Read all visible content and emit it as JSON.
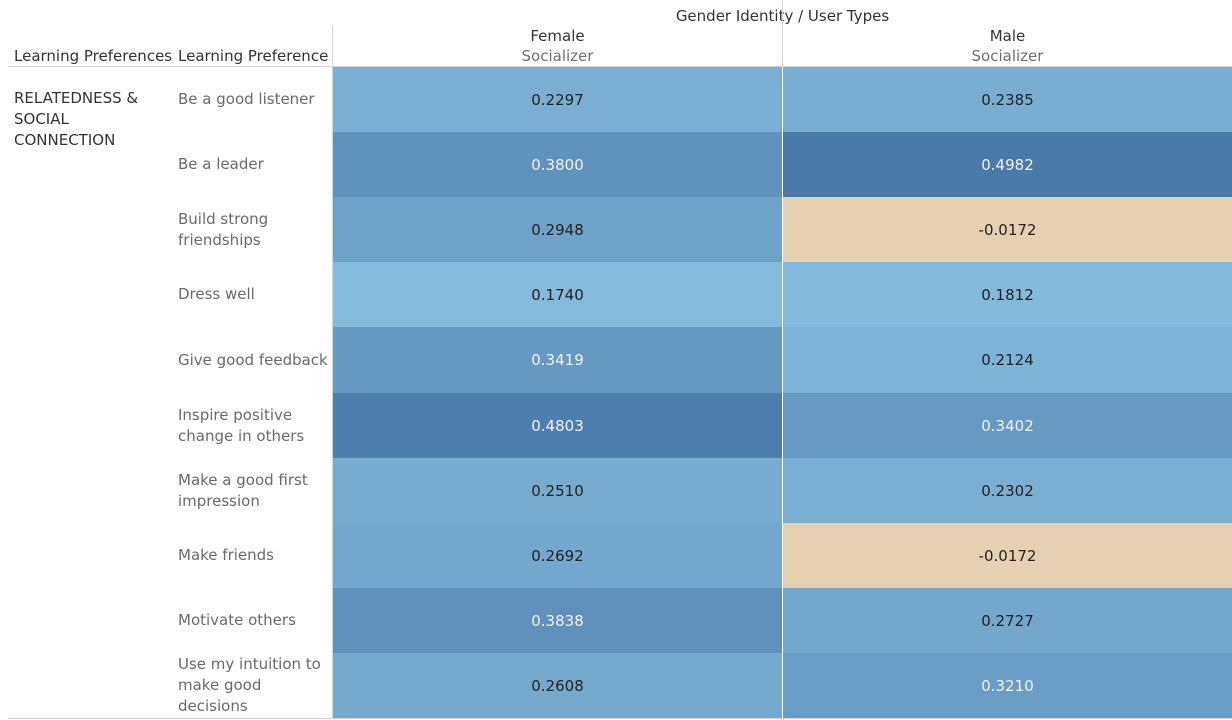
{
  "header": {
    "top_title": "Gender Identity / User Types",
    "row_header_1": "Learning Preferences",
    "row_header_2": "Learning Preference.."
  },
  "columns": [
    {
      "gender": "Female",
      "user_type": "Socializer"
    },
    {
      "gender": "Male",
      "user_type": "Socializer"
    }
  ],
  "group": {
    "label": "RELATEDNESS & SOCIAL CONNECTION"
  },
  "colors": {
    "positive_scale_low": "#85bbdc",
    "positive_scale_high": "#4a7aaa",
    "negative": "#e6d0b2"
  },
  "chart_data": {
    "type": "heatmap",
    "title": "Gender Identity / User Types",
    "xlabel": "Gender Identity / User Types",
    "ylabel": "Learning Preferences",
    "x": [
      "Female / Socializer",
      "Male / Socializer"
    ],
    "y": [
      "Be a good listener",
      "Be a leader",
      "Build strong friendships",
      "Dress well",
      "Give good feedback",
      "Inspire positive change in others",
      "Make a good first impression",
      "Make friends",
      "Motivate others",
      "Use my intuition to make good decisions"
    ],
    "values": [
      [
        "0.2297",
        "0.2385"
      ],
      [
        "0.3800",
        "0.4982"
      ],
      [
        "0.2948",
        "-0.0172"
      ],
      [
        "0.1740",
        "0.1812"
      ],
      [
        "0.3419",
        "0.2124"
      ],
      [
        "0.4803",
        "0.3402"
      ],
      [
        "0.2510",
        "0.2302"
      ],
      [
        "0.2692",
        "-0.0172"
      ],
      [
        "0.3838",
        "0.2727"
      ],
      [
        "0.2608",
        "0.3210"
      ]
    ]
  }
}
